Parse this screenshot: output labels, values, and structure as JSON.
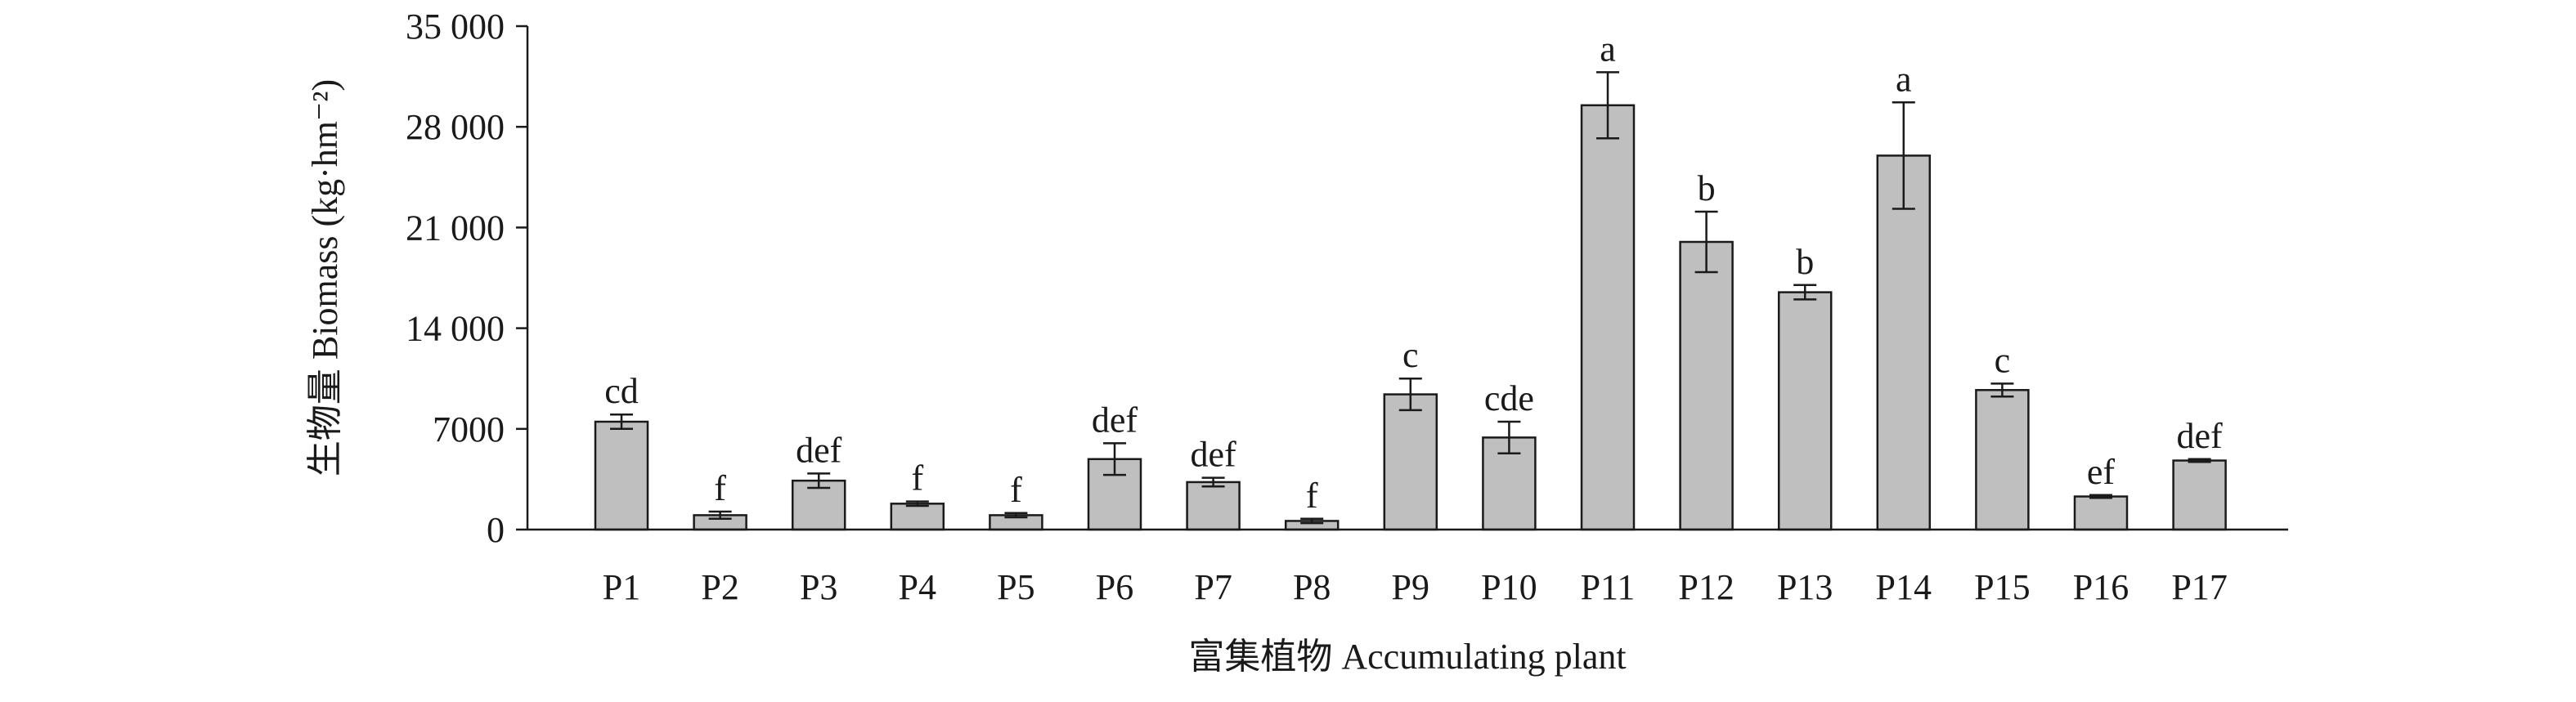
{
  "chart_data": {
    "type": "bar",
    "xlabel": "富集植物 Accumulating plant",
    "ylabel": "生物量 Biomass (kg·hm⁻²)",
    "ylim": [
      0,
      35000
    ],
    "yticks": [
      0,
      7000,
      14000,
      21000,
      28000,
      35000
    ],
    "ytick_labels": [
      "0",
      "7000",
      "14 000",
      "21 000",
      "28 000",
      "35 000"
    ],
    "categories": [
      "P1",
      "P2",
      "P3",
      "P4",
      "P5",
      "P6",
      "P7",
      "P8",
      "P9",
      "P10",
      "P11",
      "P12",
      "P13",
      "P14",
      "P15",
      "P16",
      "P17"
    ],
    "values": [
      7500,
      1000,
      3400,
      1800,
      1000,
      4900,
      3300,
      600,
      9400,
      6400,
      29500,
      20000,
      16500,
      26000,
      9700,
      2300,
      4800
    ],
    "errors": [
      500,
      250,
      500,
      150,
      150,
      1100,
      300,
      150,
      1100,
      1100,
      2300,
      2100,
      500,
      3700,
      450,
      100,
      100
    ],
    "significance": [
      "cd",
      "f",
      "def",
      "f",
      "f",
      "def",
      "def",
      "f",
      "c",
      "cde",
      "a",
      "b",
      "b",
      "a",
      "c",
      "ef",
      "def"
    ],
    "bar_color": "#bfbfbf",
    "grid": false
  }
}
